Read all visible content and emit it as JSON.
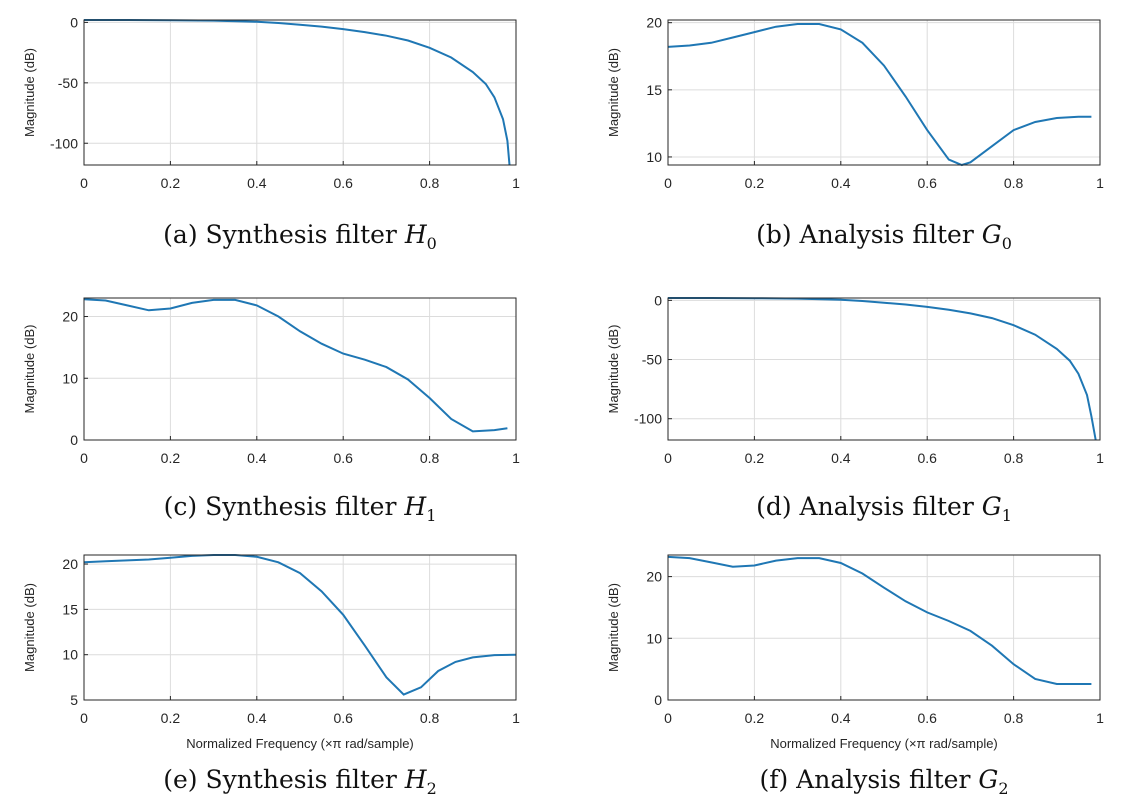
{
  "chart_data": [
    {
      "type": "line",
      "caption": {
        "prefix": "(a) Synthesis filter ",
        "symbol": "H",
        "subscript": "0"
      },
      "ylabel": "Magnitude (dB)",
      "xlabel": "",
      "xlim": [
        0,
        1
      ],
      "ylim": [
        -118,
        2
      ],
      "xticks": [
        "0",
        "0.2",
        "0.4",
        "0.6",
        "0.8",
        "1"
      ],
      "yticks": [
        "0",
        "-50",
        "-100"
      ],
      "grid": true,
      "series": [
        {
          "color": "#1f77b4",
          "x": [
            0,
            0.1,
            0.2,
            0.3,
            0.4,
            0.45,
            0.5,
            0.55,
            0.6,
            0.65,
            0.7,
            0.75,
            0.8,
            0.85,
            0.9,
            0.93,
            0.95,
            0.97,
            0.98,
            0.985
          ],
          "values": [
            2,
            2,
            1.8,
            1.5,
            0.5,
            -0.5,
            -2,
            -3.5,
            -5.5,
            -8,
            -11,
            -15,
            -21,
            -29,
            -41,
            -51,
            -62,
            -80,
            -98,
            -118
          ]
        }
      ]
    },
    {
      "type": "line",
      "caption": {
        "prefix": "(b) Analysis filter ",
        "symbol": "G",
        "subscript": "0"
      },
      "ylabel": "Magnitude (dB)",
      "xlabel": "",
      "xlim": [
        0,
        1
      ],
      "ylim": [
        9.4,
        20.2
      ],
      "xticks": [
        "0",
        "0.2",
        "0.4",
        "0.6",
        "0.8",
        "1"
      ],
      "yticks": [
        "20",
        "15",
        "10"
      ],
      "grid": true,
      "series": [
        {
          "color": "#1f77b4",
          "x": [
            0,
            0.05,
            0.1,
            0.15,
            0.2,
            0.25,
            0.3,
            0.35,
            0.4,
            0.45,
            0.5,
            0.55,
            0.6,
            0.65,
            0.68,
            0.7,
            0.75,
            0.8,
            0.85,
            0.9,
            0.95,
            0.98
          ],
          "values": [
            18.2,
            18.3,
            18.5,
            18.9,
            19.3,
            19.7,
            19.9,
            19.9,
            19.5,
            18.5,
            16.8,
            14.5,
            12,
            9.8,
            9.4,
            9.6,
            10.8,
            12,
            12.6,
            12.9,
            13,
            13
          ]
        }
      ]
    },
    {
      "type": "line",
      "caption": {
        "prefix": "(c) Synthesis filter ",
        "symbol": "H",
        "subscript": "1"
      },
      "ylabel": "Magnitude (dB)",
      "xlabel": "",
      "xlim": [
        0,
        1
      ],
      "ylim": [
        0,
        23
      ],
      "xticks": [
        "0",
        "0.2",
        "0.4",
        "0.6",
        "0.8",
        "1"
      ],
      "yticks": [
        "20",
        "10",
        "0"
      ],
      "grid": true,
      "series": [
        {
          "color": "#1f77b4",
          "x": [
            0,
            0.05,
            0.1,
            0.15,
            0.2,
            0.25,
            0.3,
            0.35,
            0.4,
            0.45,
            0.5,
            0.55,
            0.6,
            0.65,
            0.7,
            0.75,
            0.8,
            0.85,
            0.9,
            0.95,
            0.98
          ],
          "values": [
            22.8,
            22.6,
            21.8,
            21,
            21.3,
            22.2,
            22.7,
            22.7,
            21.8,
            20,
            17.6,
            15.6,
            14,
            13,
            11.8,
            9.8,
            6.8,
            3.4,
            1.4,
            1.6,
            1.9
          ]
        }
      ]
    },
    {
      "type": "line",
      "caption": {
        "prefix": "(d) Analysis filter ",
        "symbol": "G",
        "subscript": "1"
      },
      "ylabel": "Magnitude (dB)",
      "xlabel": "",
      "xlim": [
        0,
        1
      ],
      "ylim": [
        -118,
        2
      ],
      "xticks": [
        "0",
        "0.2",
        "0.4",
        "0.6",
        "0.8",
        "1"
      ],
      "yticks": [
        "0",
        "-50",
        "-100"
      ],
      "grid": true,
      "series": [
        {
          "color": "#1f77b4",
          "x": [
            0,
            0.1,
            0.2,
            0.3,
            0.4,
            0.45,
            0.5,
            0.55,
            0.6,
            0.65,
            0.7,
            0.75,
            0.8,
            0.85,
            0.9,
            0.93,
            0.95,
            0.97,
            0.98,
            0.99
          ],
          "values": [
            2,
            2,
            1.8,
            1.5,
            0.5,
            -0.5,
            -2,
            -3.5,
            -5.5,
            -8,
            -11,
            -15,
            -21,
            -29,
            -41,
            -51,
            -62,
            -80,
            -98,
            -118
          ]
        }
      ]
    },
    {
      "type": "line",
      "caption": {
        "prefix": "(e) Synthesis filter ",
        "symbol": "H",
        "subscript": "2"
      },
      "ylabel": "Magnitude (dB)",
      "xlabel": "Normalized Frequency  (×π rad/sample)",
      "xlim": [
        0,
        1
      ],
      "ylim": [
        5,
        21
      ],
      "xticks": [
        "0",
        "0.2",
        "0.4",
        "0.6",
        "0.8",
        "1"
      ],
      "yticks": [
        "20",
        "15",
        "10",
        "5"
      ],
      "grid": true,
      "series": [
        {
          "color": "#1f77b4",
          "x": [
            0,
            0.05,
            0.1,
            0.15,
            0.2,
            0.25,
            0.3,
            0.35,
            0.4,
            0.45,
            0.5,
            0.55,
            0.6,
            0.65,
            0.7,
            0.74,
            0.78,
            0.82,
            0.86,
            0.9,
            0.95,
            1.0
          ],
          "values": [
            20.2,
            20.3,
            20.4,
            20.5,
            20.7,
            20.9,
            21,
            21,
            20.8,
            20.2,
            19,
            17,
            14.4,
            11,
            7.5,
            5.6,
            6.4,
            8.2,
            9.2,
            9.7,
            9.95,
            10
          ]
        }
      ]
    },
    {
      "type": "line",
      "caption": {
        "prefix": "(f) Analysis filter ",
        "symbol": "G",
        "subscript": "2"
      },
      "ylabel": "Magnitude (dB)",
      "xlabel": "Normalized Frequency  (×π rad/sample)",
      "xlim": [
        0,
        1
      ],
      "ylim": [
        0,
        23.5
      ],
      "xticks": [
        "0",
        "0.2",
        "0.4",
        "0.6",
        "0.8",
        "1"
      ],
      "yticks": [
        "20",
        "10",
        "0"
      ],
      "grid": true,
      "series": [
        {
          "color": "#1f77b4",
          "x": [
            0,
            0.05,
            0.1,
            0.15,
            0.2,
            0.25,
            0.3,
            0.35,
            0.4,
            0.45,
            0.5,
            0.55,
            0.6,
            0.65,
            0.7,
            0.75,
            0.8,
            0.85,
            0.9,
            0.95,
            0.98
          ],
          "values": [
            23.2,
            23,
            22.3,
            21.6,
            21.8,
            22.6,
            23,
            23,
            22.2,
            20.5,
            18.2,
            16,
            14.2,
            12.8,
            11.2,
            8.8,
            5.8,
            3.4,
            2.6,
            2.6,
            2.6
          ]
        }
      ]
    }
  ]
}
